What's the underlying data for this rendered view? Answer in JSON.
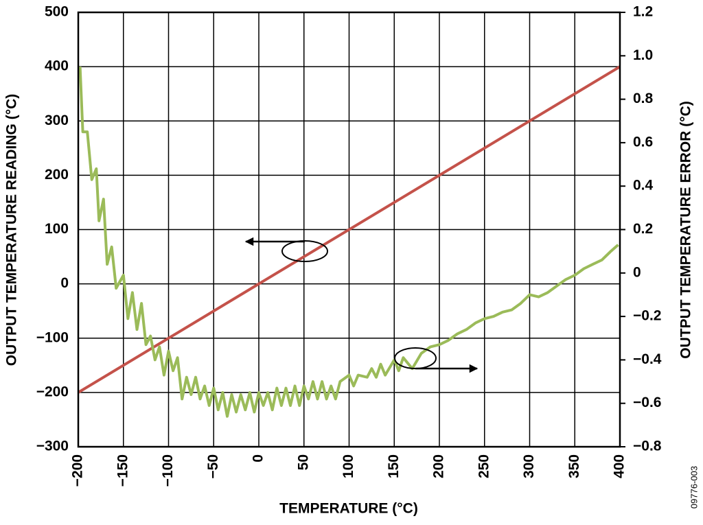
{
  "chart_data": {
    "type": "line",
    "x_label": "TEMPERATURE (°C)",
    "y_label": "OUTPUT TEMPERATURE READING (°C)",
    "y2_label": "OUTPUT TEMPERATURE ERROR (°C)",
    "note": "09776-003",
    "xlim": [
      -200,
      400
    ],
    "xticks": [
      {
        "value": -200,
        "label": "−200"
      },
      {
        "value": -150,
        "label": "−150"
      },
      {
        "value": -100,
        "label": "−100"
      },
      {
        "value": -50,
        "label": "−50"
      },
      0,
      50,
      100,
      150,
      200,
      250,
      300,
      350,
      400
    ],
    "ylim": [
      -300,
      500
    ],
    "yticks": [
      {
        "value": -300,
        "label": "−300"
      },
      {
        "value": -200,
        "label": "−200"
      },
      {
        "value": -100,
        "label": "−100"
      },
      0,
      100,
      200,
      300,
      400,
      500
    ],
    "y2lim": [
      -0.8,
      1.2
    ],
    "y2ticks": [
      {
        "value": -0.8,
        "label": "−0.8"
      },
      {
        "value": -0.6,
        "label": "−0.6"
      },
      {
        "value": -0.4,
        "label": "−0.4"
      },
      {
        "value": -0.2,
        "label": "−0.2"
      },
      0,
      0.2,
      0.4,
      0.6,
      0.8,
      {
        "value": 1,
        "label": "1.0"
      },
      1.2
    ],
    "grid": true,
    "series": [
      {
        "color": "#c4524a",
        "x": [
          -200,
          400
        ],
        "values": [
          -200,
          400
        ]
      },
      {
        "color": "#9bbb59",
        "axis": "y2",
        "x": [
          -198,
          -195,
          -190,
          -185,
          -180,
          -177,
          -172,
          -168,
          -163,
          -158,
          -150,
          -145,
          -140,
          -135,
          -130,
          -125,
          -120,
          -115,
          -110,
          -105,
          -100,
          -95,
          -90,
          -85,
          -80,
          -75,
          -70,
          -65,
          -60,
          -55,
          -50,
          -45,
          -40,
          -35,
          -30,
          -25,
          -20,
          -15,
          -10,
          -5,
          0,
          5,
          10,
          15,
          20,
          25,
          30,
          35,
          40,
          45,
          50,
          55,
          60,
          65,
          70,
          75,
          80,
          85,
          90,
          100,
          105,
          110,
          120,
          125,
          130,
          135,
          140,
          150,
          155,
          160,
          170,
          180,
          190,
          200,
          210,
          220,
          230,
          240,
          250,
          260,
          270,
          280,
          290,
          300,
          310,
          320,
          340,
          350,
          360,
          370,
          380,
          390,
          398
        ],
        "values": [
          0.95,
          0.65,
          0.65,
          0.43,
          0.48,
          0.24,
          0.34,
          0.04,
          0.12,
          -0.07,
          -0.01,
          -0.21,
          -0.09,
          -0.26,
          -0.14,
          -0.33,
          -0.29,
          -0.4,
          -0.34,
          -0.47,
          -0.36,
          -0.45,
          -0.39,
          -0.58,
          -0.48,
          -0.56,
          -0.48,
          -0.58,
          -0.52,
          -0.61,
          -0.53,
          -0.63,
          -0.55,
          -0.66,
          -0.56,
          -0.64,
          -0.56,
          -0.63,
          -0.55,
          -0.64,
          -0.55,
          -0.61,
          -0.55,
          -0.63,
          -0.53,
          -0.61,
          -0.53,
          -0.61,
          -0.52,
          -0.61,
          -0.52,
          -0.58,
          -0.5,
          -0.58,
          -0.5,
          -0.58,
          -0.52,
          -0.58,
          -0.5,
          -0.47,
          -0.52,
          -0.47,
          -0.48,
          -0.44,
          -0.48,
          -0.42,
          -0.47,
          -0.4,
          -0.45,
          -0.39,
          -0.44,
          -0.37,
          -0.34,
          -0.33,
          -0.31,
          -0.28,
          -0.26,
          -0.23,
          -0.21,
          -0.2,
          -0.18,
          -0.17,
          -0.14,
          -0.1,
          -0.11,
          -0.09,
          -0.03,
          -0.01,
          0.02,
          0.04,
          0.06,
          0.1,
          0.13
        ]
      }
    ]
  }
}
